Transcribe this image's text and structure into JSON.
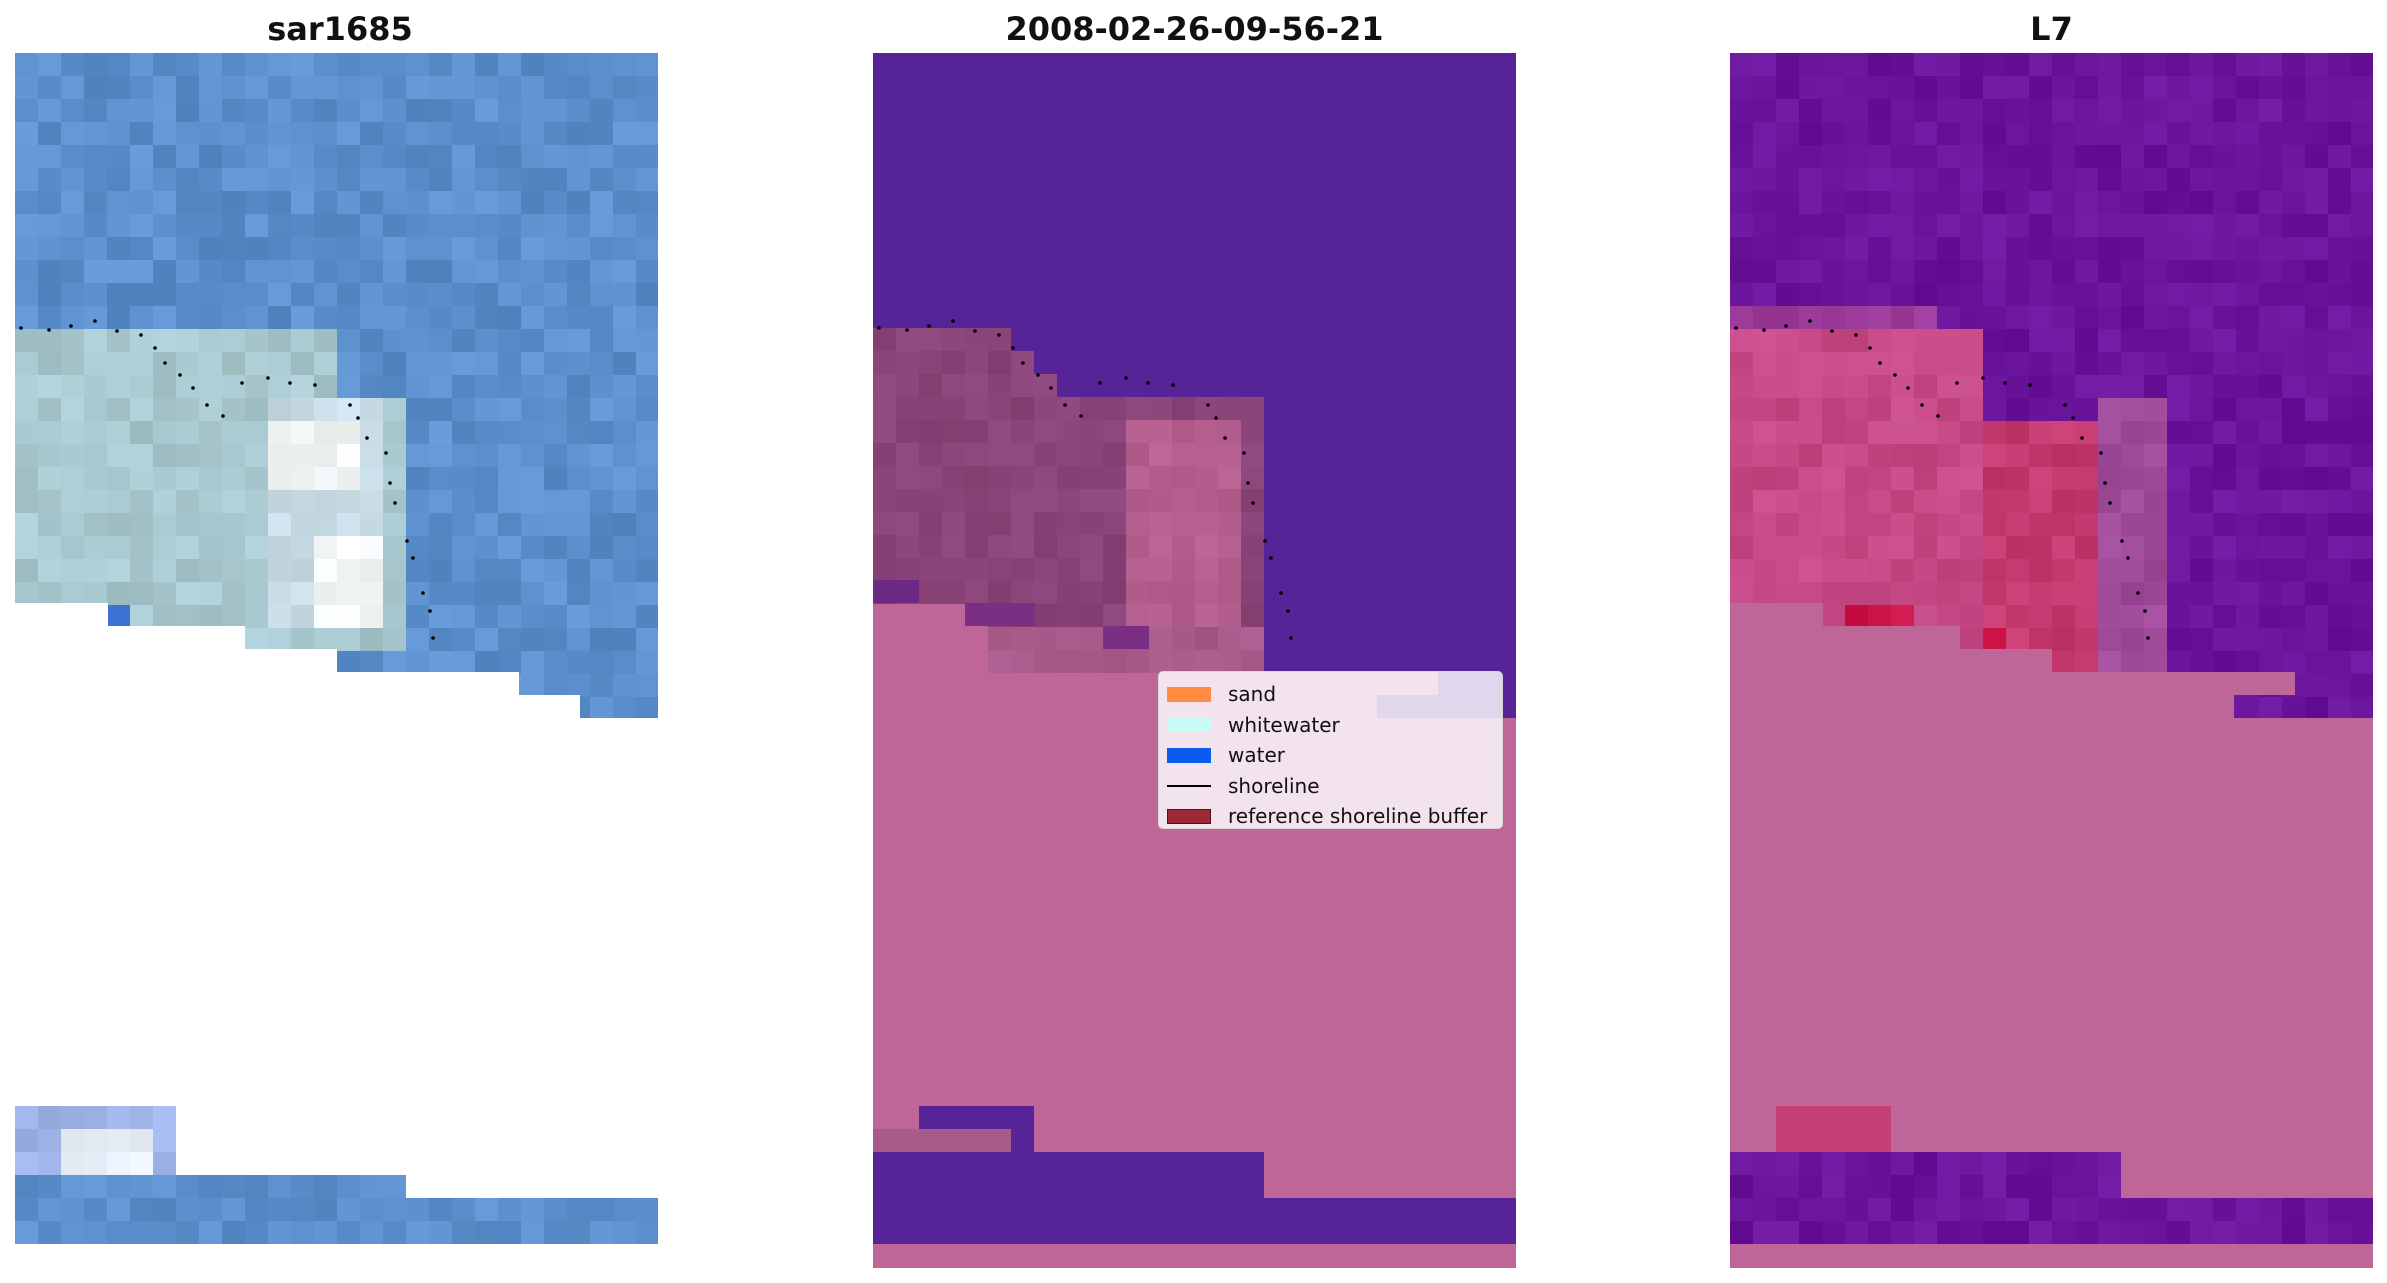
{
  "panels": [
    {
      "id": "rgb",
      "title": "sar1685"
    },
    {
      "id": "classified",
      "title": "2008-02-26-09-56-21"
    },
    {
      "id": "index",
      "title": "L7"
    }
  ],
  "legend": {
    "items": [
      {
        "label": "sand",
        "color": "#ff8c42",
        "kind": "patch"
      },
      {
        "label": "whitewater",
        "color": "#c8fbf7",
        "kind": "patch"
      },
      {
        "label": "water",
        "color": "#0a5bf0",
        "kind": "patch"
      },
      {
        "label": "shoreline",
        "color": "#000000",
        "kind": "line"
      },
      {
        "label": "reference shoreline buffer",
        "color": "#9b2a36",
        "kind": "patch"
      }
    ]
  },
  "colors": {
    "rgb_water": "#5b8fcc",
    "rgb_surf": "#a8c8cf",
    "rgb_whitewater": "#f3f7f8",
    "rgb_deepwater": "#3f74d6",
    "class_water": "#562496",
    "class_land": "#bd6697",
    "class_sand": "#8a4478",
    "class_surf": "#b45f8f",
    "index_water": "#6a149b",
    "index_land": "#bd6697",
    "index_sand": "#c23c75",
    "index_hot": "#cc1448",
    "shoreline": "#000000"
  }
}
